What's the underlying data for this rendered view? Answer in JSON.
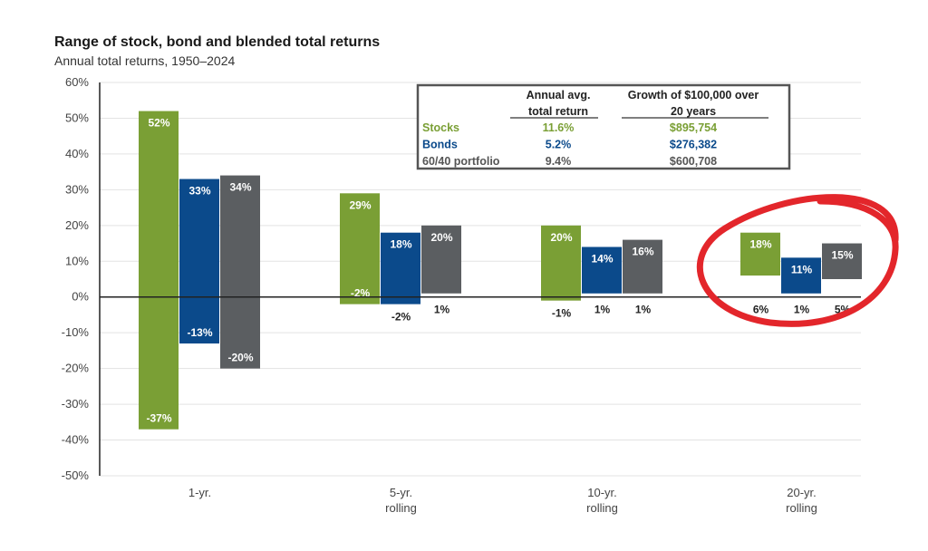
{
  "chart_data": {
    "type": "bar",
    "title": "Range of stock, bond and blended total returns",
    "subtitle": "Annual total returns, 1950–2024",
    "y_ticks": [
      "60%",
      "50%",
      "40%",
      "30%",
      "20%",
      "10%",
      "0%",
      "-10%",
      "-20%",
      "-30%",
      "-40%",
      "-50%"
    ],
    "ylim": [
      -50,
      60
    ],
    "categories": [
      {
        "line1": "1-yr.",
        "line2": ""
      },
      {
        "line1": "5-yr.",
        "line2": "rolling"
      },
      {
        "line1": "10-yr.",
        "line2": "rolling"
      },
      {
        "line1": "20-yr.",
        "line2": "rolling"
      }
    ],
    "series": [
      {
        "name": "Stocks",
        "color": "#7a9f35",
        "high": [
          52,
          29,
          20,
          18
        ],
        "low": [
          -37,
          -2,
          -1,
          6
        ],
        "high_labels": [
          "52%",
          "29%",
          "20%",
          "18%"
        ],
        "low_labels": [
          "-37%",
          "-2%",
          "-1%",
          "6%"
        ]
      },
      {
        "name": "Bonds",
        "color": "#0b4a8b",
        "high": [
          33,
          18,
          14,
          11
        ],
        "low": [
          -13,
          -2,
          1,
          1
        ],
        "high_labels": [
          "33%",
          "18%",
          "14%",
          "11%"
        ],
        "low_labels": [
          "-13%",
          "-2%",
          "1%",
          "1%"
        ]
      },
      {
        "name": "60/40 portfolio",
        "color": "#5b5e61",
        "high": [
          34,
          20,
          16,
          15
        ],
        "low": [
          -20,
          1,
          1,
          5
        ],
        "high_labels": [
          "34%",
          "20%",
          "16%",
          "15%"
        ],
        "low_labels": [
          "-20%",
          "1%",
          "1%",
          "5%"
        ]
      }
    ],
    "table": {
      "header1": [
        "Annual avg.",
        "Growth of $100,000 over"
      ],
      "header2": [
        "total return",
        "20 years"
      ],
      "rows": [
        {
          "name": "Stocks",
          "avg": "11.6%",
          "growth": "$895,754",
          "color": "#7a9f35"
        },
        {
          "name": "Bonds",
          "avg": "5.2%",
          "growth": "$276,382",
          "color": "#0b4a8b"
        },
        {
          "name": "60/40 portfolio",
          "avg": "9.4%",
          "growth": "$600,708",
          "color": "#555555"
        }
      ]
    },
    "annotation": {
      "type": "hand-drawn ellipse",
      "color": "#e3262b",
      "highlights": "20-yr. rolling"
    },
    "grid": true
  }
}
